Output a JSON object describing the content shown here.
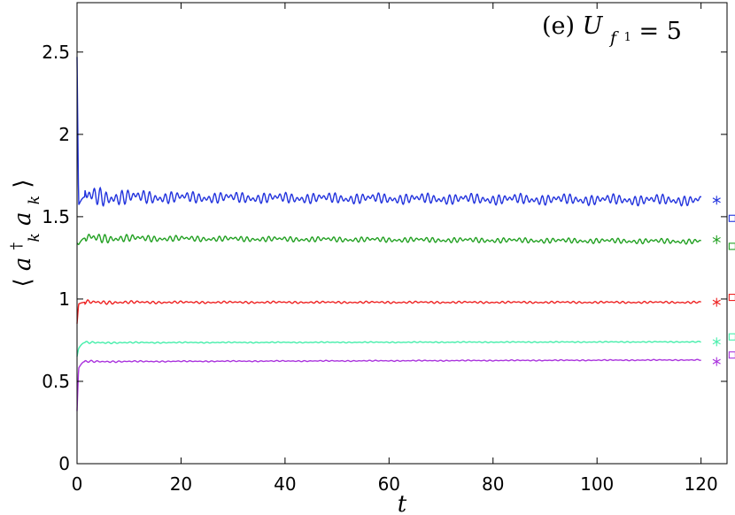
{
  "chart_data": {
    "type": "line",
    "annotation": "(e) U_{f_1} = 5",
    "annotation_parts": {
      "prefix": "(e) ",
      "var": "U",
      "sub": "f",
      "subsub": "1",
      "rest": " = 5"
    },
    "xlabel": "t",
    "ylabel": "⟨a_k^† a_k⟩",
    "ylabel_parts": {
      "open": "⟨",
      "a1": "a",
      "sup": "†",
      "sub1": "k",
      "a2": "a",
      "sub2": "k",
      "close": "⟩"
    },
    "xlim": [
      0,
      125
    ],
    "ylim": [
      0,
      2.8
    ],
    "xticks": [
      0,
      20,
      40,
      60,
      80,
      100,
      120
    ],
    "xtick_labels": [
      "0",
      "20",
      "40",
      "60",
      "80",
      "100",
      "120"
    ],
    "yticks": [
      0,
      0.5,
      1,
      1.5,
      2,
      2.5
    ],
    "ytick_labels": [
      "0",
      "0.5",
      "1",
      "1.5",
      "2",
      "2.5"
    ],
    "grid": false,
    "series": [
      {
        "color": "#2233dd",
        "t_end": 120,
        "initial": 2.47,
        "dip": 1.57,
        "plateau": 1.62,
        "osc_amp": 0.03,
        "final": 1.6,
        "star_y": 1.6,
        "square_y": 1.49
      },
      {
        "color": "#22a022",
        "t_end": 120,
        "initial": 1.34,
        "dip": 1.33,
        "plateau": 1.37,
        "osc_amp": 0.015,
        "final": 1.35,
        "star_y": 1.36,
        "square_y": 1.32
      },
      {
        "color": "#ee2222",
        "t_end": 120,
        "initial": 0.85,
        "dip": 0.97,
        "plateau": 0.98,
        "osc_amp": 0.006,
        "final": 0.98,
        "star_y": 0.98,
        "square_y": 1.01
      },
      {
        "color": "#44eeaa",
        "t_end": 120,
        "initial": 0.65,
        "dip": 0.7,
        "plateau": 0.735,
        "osc_amp": 0.003,
        "final": 0.74,
        "star_y": 0.74,
        "square_y": 0.77
      },
      {
        "color": "#aa33dd",
        "t_end": 120,
        "initial": 0.32,
        "dip": 0.58,
        "plateau": 0.62,
        "osc_amp": 0.003,
        "final": 0.63,
        "star_y": 0.62,
        "square_y": 0.66
      }
    ],
    "marker_x": {
      "star": 123,
      "square": 126
    }
  }
}
